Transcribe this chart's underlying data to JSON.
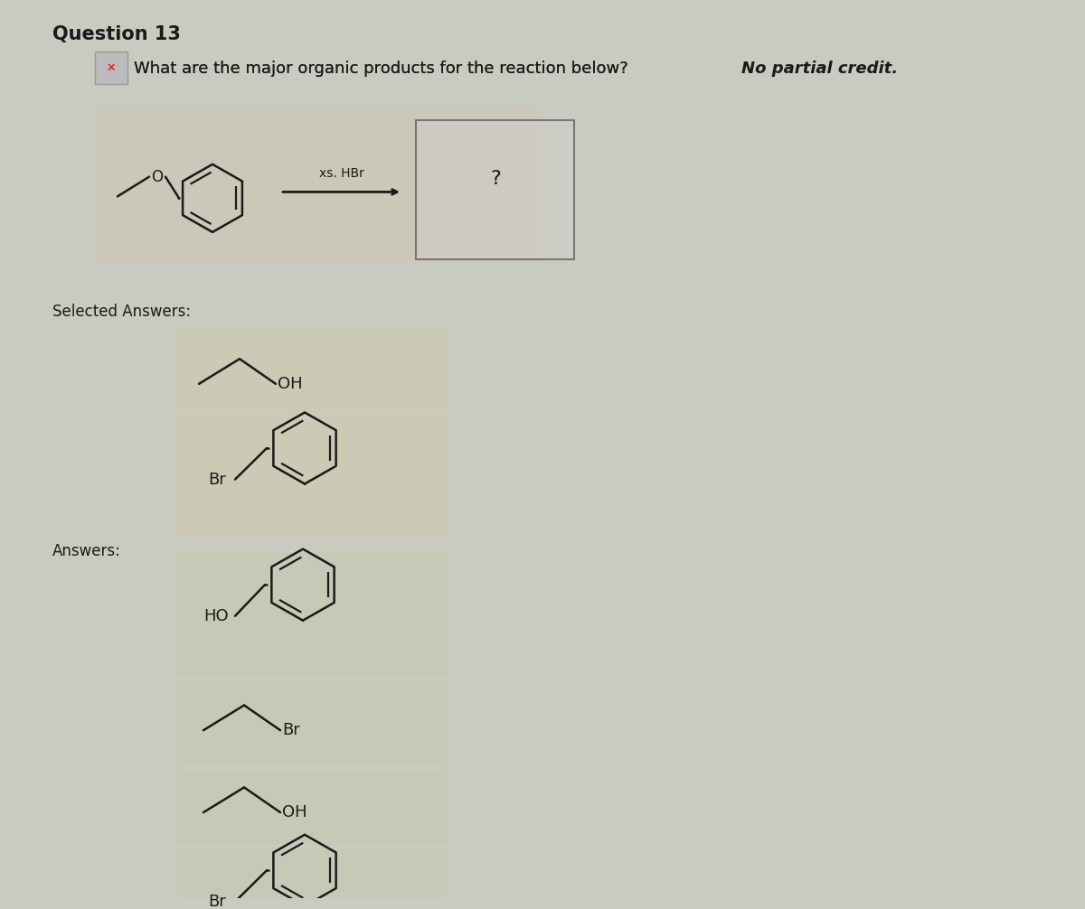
{
  "title": "Question 13",
  "question_text": "What are the major organic products for the reaction below?",
  "question_bold_italic": "No partial credit.",
  "bg_color": "#c8ccc0",
  "reaction_panel_color": "#cdc8b8",
  "selected_box_color": "#cec8b8",
  "answer_box_color": "#c8ccba",
  "reagent_text": "xs. HBr",
  "question_mark": "?",
  "selected_answers_label": "Selected Answers:",
  "answers_label": "Answers:"
}
